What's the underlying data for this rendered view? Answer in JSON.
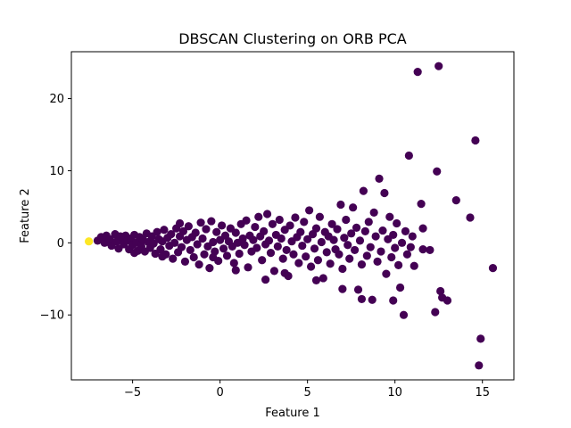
{
  "chart_data": {
    "type": "scatter",
    "title": "DBSCAN Clustering on ORB PCA",
    "xlabel": "Feature 1",
    "ylabel": "Feature 2",
    "xlim": [
      -8.5,
      16.8
    ],
    "ylim": [
      -19.0,
      26.5
    ],
    "xticks": [
      -5,
      0,
      5,
      10,
      15
    ],
    "xtick_labels": [
      "−5",
      "0",
      "5",
      "10",
      "15"
    ],
    "yticks": [
      -10,
      0,
      10,
      20
    ],
    "ytick_labels": [
      "−10",
      "0",
      "10",
      "20"
    ],
    "grid": false,
    "legend": false,
    "series": [
      {
        "cluster": -1,
        "color": "#440154",
        "points": [
          [
            -7.0,
            0.3
          ],
          [
            -6.8,
            0.8
          ],
          [
            -6.6,
            0.0
          ],
          [
            -6.5,
            1.0
          ],
          [
            -6.3,
            0.5
          ],
          [
            -6.2,
            -0.4
          ],
          [
            -6.0,
            1.2
          ],
          [
            -5.9,
            0.2
          ],
          [
            -5.8,
            -0.8
          ],
          [
            -5.6,
            0.7
          ],
          [
            -5.5,
            -0.2
          ],
          [
            -5.4,
            1.0
          ],
          [
            -5.3,
            0.3
          ],
          [
            -5.2,
            -0.9
          ],
          [
            -5.1,
            0.6
          ],
          [
            -5.0,
            -0.3
          ],
          [
            -4.9,
            1.1
          ],
          [
            -4.8,
            0.0
          ],
          [
            -4.7,
            -1.1
          ],
          [
            -4.6,
            0.8
          ],
          [
            -4.5,
            -0.5
          ],
          [
            -4.4,
            0.4
          ],
          [
            -4.3,
            -1.2
          ],
          [
            -4.2,
            1.3
          ],
          [
            -4.1,
            0.1
          ],
          [
            -4.0,
            -0.7
          ],
          [
            -3.9,
            0.9
          ],
          [
            -3.8,
            -0.1
          ],
          [
            -3.7,
            -1.5
          ],
          [
            -3.6,
            1.5
          ],
          [
            -3.5,
            0.5
          ],
          [
            -3.4,
            -0.9
          ],
          [
            -3.3,
            0.2
          ],
          [
            -3.2,
            1.8
          ],
          [
            -3.1,
            -1.6
          ],
          [
            -3.0,
            0.7
          ],
          [
            -2.9,
            -0.4
          ],
          [
            -2.8,
            1.2
          ],
          [
            -2.7,
            -2.2
          ],
          [
            -2.6,
            0.0
          ],
          [
            -2.5,
            2.0
          ],
          [
            -2.4,
            -1.3
          ],
          [
            -2.3,
            0.9
          ],
          [
            -2.2,
            -0.6
          ],
          [
            -2.1,
            1.6
          ],
          [
            -2.0,
            -2.6
          ],
          [
            -1.9,
            0.4
          ],
          [
            -1.8,
            2.3
          ],
          [
            -1.7,
            -1.0
          ],
          [
            -1.6,
            0.8
          ],
          [
            -1.5,
            -2.0
          ],
          [
            -1.4,
            1.4
          ],
          [
            -1.3,
            -0.2
          ],
          [
            -1.2,
            -3.0
          ],
          [
            -1.1,
            2.8
          ],
          [
            -1.0,
            0.6
          ],
          [
            -0.9,
            -1.6
          ],
          [
            -0.8,
            1.9
          ],
          [
            -0.7,
            -0.5
          ],
          [
            -0.6,
            -3.5
          ],
          [
            -0.5,
            3.0
          ],
          [
            -0.4,
            0.1
          ],
          [
            -0.3,
            -1.2
          ],
          [
            -0.2,
            1.5
          ],
          [
            -0.1,
            -2.5
          ],
          [
            0.0,
            0.4
          ],
          [
            0.1,
            2.4
          ],
          [
            0.2,
            -0.8
          ],
          [
            0.3,
            1.0
          ],
          [
            0.4,
            -1.8
          ],
          [
            0.5,
            0.2
          ],
          [
            0.6,
            2.0
          ],
          [
            0.7,
            -0.5
          ],
          [
            0.8,
            -2.8
          ],
          [
            0.9,
            1.4
          ],
          [
            1.0,
            0.0
          ],
          [
            1.1,
            -1.5
          ],
          [
            1.2,
            2.6
          ],
          [
            1.3,
            0.6
          ],
          [
            1.4,
            -0.3
          ],
          [
            1.5,
            3.1
          ],
          [
            1.6,
            -3.4
          ],
          [
            1.7,
            1.0
          ],
          [
            1.8,
            -1.2
          ],
          [
            1.9,
            0.4
          ],
          [
            2.0,
            2.2
          ],
          [
            2.1,
            -0.7
          ],
          [
            2.2,
            3.6
          ],
          [
            2.3,
            0.9
          ],
          [
            2.4,
            -2.4
          ],
          [
            2.5,
            1.6
          ],
          [
            2.6,
            -0.2
          ],
          [
            2.7,
            4.0
          ],
          [
            2.8,
            0.3
          ],
          [
            2.9,
            -1.4
          ],
          [
            3.0,
            2.6
          ],
          [
            3.1,
            -3.9
          ],
          [
            3.2,
            1.1
          ],
          [
            3.3,
            -0.5
          ],
          [
            3.4,
            3.2
          ],
          [
            3.5,
            0.6
          ],
          [
            3.6,
            -2.2
          ],
          [
            3.7,
            1.8
          ],
          [
            3.8,
            -1.0
          ],
          [
            3.9,
            -4.6
          ],
          [
            4.0,
            2.4
          ],
          [
            4.1,
            0.2
          ],
          [
            4.2,
            -1.6
          ],
          [
            4.3,
            3.5
          ],
          [
            4.4,
            0.8
          ],
          [
            4.5,
            -2.8
          ],
          [
            4.6,
            1.5
          ],
          [
            4.7,
            -0.4
          ],
          [
            4.8,
            2.9
          ],
          [
            4.9,
            -1.9
          ],
          [
            5.0,
            0.5
          ],
          [
            5.1,
            4.5
          ],
          [
            5.2,
            -3.3
          ],
          [
            5.3,
            1.2
          ],
          [
            5.4,
            -0.8
          ],
          [
            5.5,
            2.0
          ],
          [
            5.6,
            -2.4
          ],
          [
            5.7,
            3.6
          ],
          [
            5.8,
            0.1
          ],
          [
            5.9,
            -4.9
          ],
          [
            6.0,
            1.5
          ],
          [
            6.1,
            -1.3
          ],
          [
            6.2,
            0.9
          ],
          [
            6.3,
            -2.9
          ],
          [
            6.4,
            2.6
          ],
          [
            6.5,
            0.4
          ],
          [
            6.6,
            -0.9
          ],
          [
            6.7,
            1.9
          ],
          [
            6.8,
            -1.6
          ],
          [
            6.9,
            5.3
          ],
          [
            7.0,
            -3.6
          ],
          [
            7.1,
            0.7
          ],
          [
            7.2,
            3.2
          ],
          [
            7.3,
            -0.3
          ],
          [
            7.4,
            -2.2
          ],
          [
            7.5,
            1.3
          ],
          [
            7.6,
            4.9
          ],
          [
            7.7,
            -1.0
          ],
          [
            7.8,
            2.1
          ],
          [
            7.9,
            -6.5
          ],
          [
            8.0,
            0.3
          ],
          [
            8.1,
            -3.0
          ],
          [
            8.2,
            7.2
          ],
          [
            8.3,
            1.6
          ],
          [
            8.4,
            -1.8
          ],
          [
            8.5,
            2.9
          ],
          [
            8.6,
            -0.6
          ],
          [
            8.7,
            -7.9
          ],
          [
            8.8,
            4.2
          ],
          [
            8.9,
            0.9
          ],
          [
            9.0,
            -2.6
          ],
          [
            9.1,
            8.9
          ],
          [
            9.2,
            -1.2
          ],
          [
            9.3,
            1.7
          ],
          [
            9.4,
            6.9
          ],
          [
            9.5,
            -4.3
          ],
          [
            9.6,
            0.5
          ],
          [
            9.7,
            3.6
          ],
          [
            9.8,
            -2.0
          ],
          [
            9.9,
            1.1
          ],
          [
            10.0,
            -0.7
          ],
          [
            10.1,
            2.7
          ],
          [
            10.2,
            -3.1
          ],
          [
            10.3,
            -6.2
          ],
          [
            10.4,
            0.0
          ],
          [
            10.5,
            -10.0
          ],
          [
            10.6,
            1.6
          ],
          [
            10.7,
            -1.6
          ],
          [
            10.8,
            12.1
          ],
          [
            10.9,
            -0.6
          ],
          [
            11.0,
            0.9
          ],
          [
            11.1,
            -3.2
          ],
          [
            11.3,
            23.7
          ],
          [
            11.5,
            5.4
          ],
          [
            11.6,
            2.0
          ],
          [
            12.0,
            -1.0
          ],
          [
            12.3,
            -9.6
          ],
          [
            12.4,
            9.9
          ],
          [
            12.5,
            24.5
          ],
          [
            12.6,
            -6.7
          ],
          [
            12.7,
            -7.6
          ],
          [
            13.0,
            -8.0
          ],
          [
            13.5,
            5.9
          ],
          [
            14.3,
            3.5
          ],
          [
            14.6,
            14.2
          ],
          [
            14.8,
            -17.0
          ],
          [
            14.9,
            -13.3
          ],
          [
            15.6,
            -3.5
          ],
          [
            -5.7,
            0.9
          ],
          [
            -4.9,
            -1.4
          ],
          [
            -3.3,
            -1.9
          ],
          [
            -2.3,
            2.7
          ],
          [
            -0.4,
            -2.0
          ],
          [
            0.9,
            -3.8
          ],
          [
            2.6,
            -5.1
          ],
          [
            3.7,
            -4.2
          ],
          [
            5.5,
            -5.2
          ],
          [
            7.0,
            -6.4
          ],
          [
            8.1,
            -7.8
          ],
          [
            9.9,
            -8.0
          ],
          [
            11.6,
            -0.9
          ]
        ]
      },
      {
        "cluster": 0,
        "color": "#fde725",
        "points": [
          [
            -7.5,
            0.2
          ]
        ]
      }
    ]
  }
}
